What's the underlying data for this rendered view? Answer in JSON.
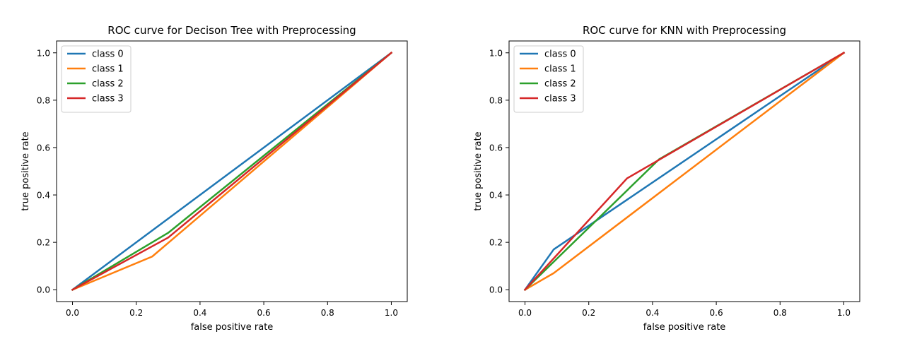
{
  "chart_data": [
    {
      "type": "line",
      "title": "ROC curve for Decison Tree with Preprocessing",
      "xlabel": "false positive rate",
      "ylabel": "true positive rate",
      "xlim": [
        -0.05,
        1.05
      ],
      "ylim": [
        -0.05,
        1.05
      ],
      "xticks": [
        "0.0",
        "0.2",
        "0.4",
        "0.6",
        "0.8",
        "1.0"
      ],
      "yticks": [
        "0.0",
        "0.2",
        "0.4",
        "0.6",
        "0.8",
        "1.0"
      ],
      "legend_position": "upper-left",
      "grid": false,
      "series": [
        {
          "name": "class 0",
          "color": "#1f77b4",
          "x": [
            0,
            1
          ],
          "y": [
            0,
            1
          ]
        },
        {
          "name": "class 1",
          "color": "#ff7f0e",
          "x": [
            0,
            0.25,
            1
          ],
          "y": [
            0,
            0.14,
            1
          ]
        },
        {
          "name": "class 2",
          "color": "#2ca02c",
          "x": [
            0,
            0.3,
            1
          ],
          "y": [
            0,
            0.24,
            1
          ]
        },
        {
          "name": "class 3",
          "color": "#d62728",
          "x": [
            0,
            0.3,
            1
          ],
          "y": [
            0,
            0.22,
            1
          ]
        }
      ]
    },
    {
      "type": "line",
      "title": "ROC curve for KNN with Preprocessing",
      "xlabel": "false positive rate",
      "ylabel": "true positive rate",
      "xlim": [
        -0.05,
        1.05
      ],
      "ylim": [
        -0.05,
        1.05
      ],
      "xticks": [
        "0.0",
        "0.2",
        "0.4",
        "0.6",
        "0.8",
        "1.0"
      ],
      "yticks": [
        "0.0",
        "0.2",
        "0.4",
        "0.6",
        "0.8",
        "1.0"
      ],
      "legend_position": "upper-left",
      "grid": false,
      "series": [
        {
          "name": "class 0",
          "color": "#1f77b4",
          "x": [
            0,
            0.09,
            1
          ],
          "y": [
            0,
            0.17,
            1
          ]
        },
        {
          "name": "class 1",
          "color": "#ff7f0e",
          "x": [
            0,
            0.09,
            1
          ],
          "y": [
            0,
            0.07,
            1
          ]
        },
        {
          "name": "class 2",
          "color": "#2ca02c",
          "x": [
            0,
            0.42,
            1
          ],
          "y": [
            0,
            0.55,
            1
          ]
        },
        {
          "name": "class 3",
          "color": "#d62728",
          "x": [
            0,
            0.32,
            1
          ],
          "y": [
            0,
            0.47,
            1
          ]
        }
      ]
    }
  ]
}
